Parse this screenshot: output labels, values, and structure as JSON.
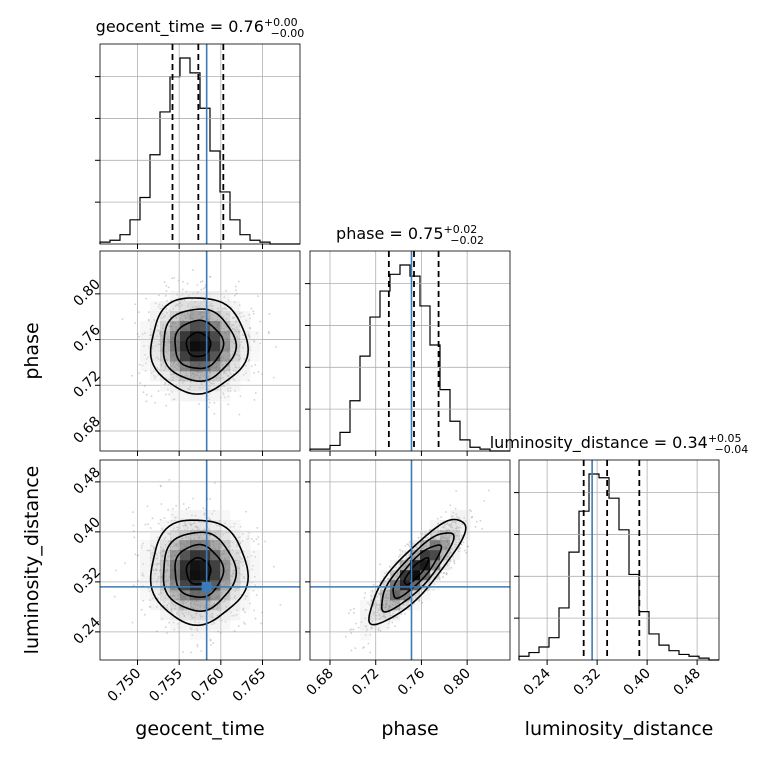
{
  "chart_data": {
    "type": "corner",
    "parameters": [
      "geocent_time",
      "phase",
      "luminosity_distance"
    ],
    "titles": [
      {
        "label": "geocent_time = 0.76",
        "plus": "+0.00",
        "minus": "−0.00"
      },
      {
        "label": "phase = 0.75",
        "plus": "+0.02",
        "minus": "−0.02"
      },
      {
        "label": "luminosity_distance = 0.34",
        "plus": "+0.05",
        "minus": "−0.04"
      }
    ],
    "ranges": [
      [
        0.7455,
        0.7695
      ],
      [
        0.6625,
        0.8375
      ],
      [
        0.195,
        0.515
      ]
    ],
    "ticks": [
      [
        0.75,
        0.755,
        0.76,
        0.765
      ],
      [
        0.68,
        0.72,
        0.76,
        0.8
      ],
      [
        0.24,
        0.32,
        0.4,
        0.48
      ]
    ],
    "tick_labels": [
      [
        "0.750",
        "0.755",
        "0.760",
        "0.765"
      ],
      [
        "0.68",
        "0.72",
        "0.76",
        "0.80"
      ],
      [
        "0.24",
        "0.32",
        "0.40",
        "0.48"
      ]
    ],
    "axis_labels": {
      "x": [
        "geocent_time",
        "phase",
        "luminosity_distance"
      ],
      "y": [
        "phase",
        "luminosity_distance"
      ]
    },
    "truths": [
      0.7583,
      0.7513,
      0.312
    ],
    "quantiles": [
      [
        0.7542,
        0.7573,
        0.7603
      ],
      [
        0.7315,
        0.7535,
        0.775
      ],
      [
        0.2985,
        0.336,
        0.3875
      ]
    ],
    "histograms": [
      [
        0.01,
        0.02,
        0.05,
        0.13,
        0.25,
        0.48,
        0.71,
        0.9,
        1.0,
        0.92,
        0.73,
        0.5,
        0.28,
        0.13,
        0.05,
        0.02,
        0.01,
        0.0,
        0.0,
        0.0
      ],
      [
        0.01,
        0.01,
        0.03,
        0.1,
        0.27,
        0.51,
        0.72,
        0.86,
        0.95,
        1.0,
        0.94,
        0.78,
        0.57,
        0.33,
        0.16,
        0.06,
        0.02,
        0.01,
        0.0,
        0.0
      ],
      [
        0.02,
        0.04,
        0.07,
        0.12,
        0.28,
        0.58,
        0.8,
        1.0,
        0.98,
        0.87,
        0.7,
        0.46,
        0.26,
        0.14,
        0.08,
        0.05,
        0.03,
        0.02,
        0.01,
        0.0
      ]
    ],
    "pairs": [
      {
        "x": 0,
        "y": 1,
        "mean": [
          0.7573,
          0.7555
        ],
        "sd": [
          0.0029,
          0.021
        ],
        "rho": 0.0
      },
      {
        "x": 0,
        "y": 2,
        "mean": [
          0.7573,
          0.337
        ],
        "sd": [
          0.0029,
          0.042
        ],
        "rho": 0.0
      },
      {
        "x": 1,
        "y": 2,
        "mean": [
          0.7555,
          0.337
        ],
        "sd": [
          0.021,
          0.042
        ],
        "rho": 0.85
      }
    ],
    "grid": true
  }
}
